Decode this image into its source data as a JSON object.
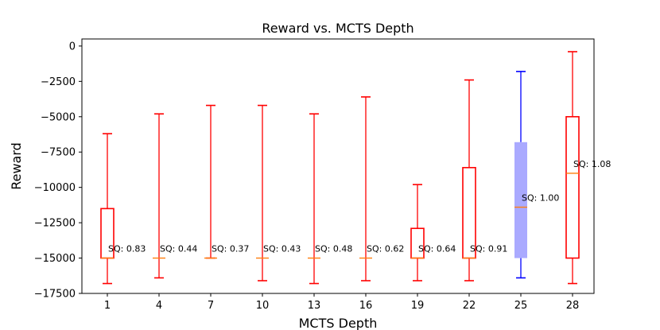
{
  "chart_data": {
    "type": "boxplot",
    "title": "Reward vs. MCTS Depth",
    "xlabel": "MCTS Depth",
    "ylabel": "Reward",
    "ylim": [
      -17500,
      500
    ],
    "yticks": [
      0,
      -2500,
      -5000,
      -7500,
      -10000,
      -12500,
      -15000,
      -17500
    ],
    "ytick_labels": [
      "0",
      "−2500",
      "−5000",
      "−7500",
      "−10000",
      "−12500",
      "−15000",
      "−17500"
    ],
    "categories": [
      "1",
      "4",
      "7",
      "10",
      "13",
      "16",
      "19",
      "22",
      "25",
      "28"
    ],
    "boxes": [
      {
        "x": "1",
        "whislo": -16800,
        "q1": -15000,
        "med": -15000,
        "q3": -11500,
        "whishi": -6200,
        "label": "SQ: 0.83",
        "color": "#ff0000",
        "filled": false
      },
      {
        "x": "4",
        "whislo": -16400,
        "q1": -15000,
        "med": -15000,
        "q3": -15000,
        "whishi": -4800,
        "label": "SQ: 0.44",
        "color": "#ff0000",
        "filled": false
      },
      {
        "x": "7",
        "whislo": -15000,
        "q1": -15000,
        "med": -15000,
        "q3": -15000,
        "whishi": -4200,
        "label": "SQ: 0.37",
        "color": "#ff0000",
        "filled": false
      },
      {
        "x": "10",
        "whislo": -16600,
        "q1": -15000,
        "med": -15000,
        "q3": -15000,
        "whishi": -4200,
        "label": "SQ: 0.43",
        "color": "#ff0000",
        "filled": false
      },
      {
        "x": "13",
        "whislo": -16800,
        "q1": -15000,
        "med": -15000,
        "q3": -15000,
        "whishi": -4800,
        "label": "SQ: 0.48",
        "color": "#ff0000",
        "filled": false
      },
      {
        "x": "16",
        "whislo": -16600,
        "q1": -15000,
        "med": -15000,
        "q3": -15000,
        "whishi": -3600,
        "label": "SQ: 0.62",
        "color": "#ff0000",
        "filled": false
      },
      {
        "x": "19",
        "whislo": -16600,
        "q1": -15000,
        "med": -15000,
        "q3": -12900,
        "whishi": -9800,
        "label": "SQ: 0.64",
        "color": "#ff0000",
        "filled": false
      },
      {
        "x": "22",
        "whislo": -16600,
        "q1": -15000,
        "med": -15000,
        "q3": -8600,
        "whishi": -2400,
        "label": "SQ: 0.91",
        "color": "#ff0000",
        "filled": false
      },
      {
        "x": "25",
        "whislo": -16400,
        "q1": -15000,
        "med": -11400,
        "q3": -6800,
        "whishi": -1800,
        "label": "SQ: 1.00",
        "color": "#0000ff",
        "filled": true,
        "fill": "#aaaaff"
      },
      {
        "x": "28",
        "whislo": -16800,
        "q1": -15000,
        "med": -9000,
        "q3": -5000,
        "whishi": -400,
        "label": "SQ: 1.08",
        "color": "#ff0000",
        "filled": false
      }
    ],
    "median_color": "#ff7f0e",
    "grid": false,
    "legend": "none"
  }
}
